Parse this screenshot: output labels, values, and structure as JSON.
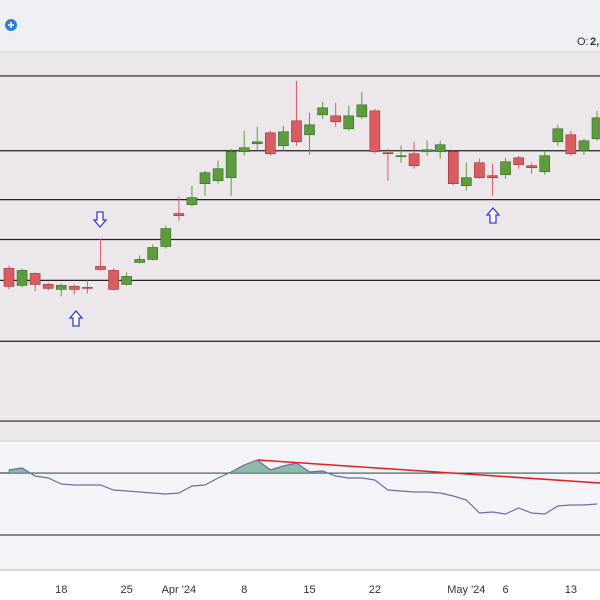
{
  "header": {
    "ohlc_label": "O:",
    "ohlc_value": "2,"
  },
  "chart_data": [
    {
      "type": "candlestick",
      "categories": [
        null,
        null,
        null,
        null,
        "18",
        null,
        null,
        null,
        null,
        "25",
        null,
        null,
        null,
        "Apr '24",
        null,
        null,
        null,
        null,
        "8",
        null,
        null,
        null,
        null,
        "15",
        null,
        null,
        null,
        null,
        "22",
        null,
        null,
        null,
        null,
        null,
        null,
        "May '24",
        null,
        null,
        "6",
        null,
        null,
        null,
        null,
        "13",
        null,
        null
      ],
      "open": [
        172,
        155,
        167,
        156,
        151,
        154,
        153,
        174,
        170,
        156,
        178,
        181,
        194,
        227,
        236,
        257,
        260,
        263,
        289,
        297,
        308,
        295,
        320,
        306,
        326,
        325,
        312,
        324,
        330,
        288,
        284,
        287,
        289,
        289,
        289,
        255,
        278,
        265,
        266,
        283,
        275,
        269,
        299,
        306,
        290,
        302
      ],
      "high": [
        175,
        172,
        168,
        158,
        157,
        156,
        160,
        202,
        172,
        168,
        185,
        196,
        215,
        244,
        255,
        270,
        280,
        292,
        310,
        314,
        310,
        315,
        360,
        328,
        339,
        338,
        335,
        349,
        332,
        292,
        295,
        299,
        300,
        300,
        290,
        278,
        282,
        277,
        283,
        285,
        278,
        290,
        316,
        310,
        302,
        330
      ],
      "low": [
        151,
        153,
        149,
        150,
        144,
        146,
        147,
        170,
        150,
        155,
        177,
        180,
        192,
        220,
        234,
        245,
        257,
        245,
        285,
        290,
        285,
        290,
        295,
        286,
        322,
        314,
        310,
        322,
        287,
        260,
        278,
        272,
        285,
        282,
        255,
        250,
        262,
        245,
        262,
        272,
        267,
        266,
        295,
        285,
        286,
        300
      ],
      "close": [
        154,
        170,
        156,
        152,
        155,
        151,
        152,
        171,
        151,
        164,
        181,
        193,
        212,
        225,
        243,
        268,
        272,
        289,
        293,
        299,
        287,
        309,
        299,
        316,
        333,
        319,
        325,
        336,
        289,
        287,
        285,
        275,
        291,
        296,
        257,
        263,
        263,
        263,
        279,
        276,
        273,
        285,
        312,
        287,
        300,
        323
      ],
      "ylim": [
        0,
        388
      ],
      "levels": [
        365,
        290,
        241,
        201,
        160,
        99,
        19
      ],
      "up_color": "#5e9b3c",
      "down_color": "#d95c60"
    },
    {
      "type": "line",
      "values": [
        115,
        117,
        109,
        107,
        101,
        100,
        100,
        100,
        95,
        94,
        93,
        92,
        91,
        92,
        99,
        100,
        107,
        113,
        120,
        125,
        115,
        119,
        122,
        113,
        114,
        109,
        107,
        107,
        105,
        95,
        94,
        93,
        93,
        92,
        89,
        85,
        72,
        73,
        71,
        77,
        72,
        71,
        79,
        80,
        80,
        81
      ],
      "color": "#6a6fa3",
      "ylim": [
        0,
        142
      ],
      "levels": [
        112,
        50
      ],
      "fill_above": 112,
      "fill_color": "#8fb8a8"
    }
  ]
}
